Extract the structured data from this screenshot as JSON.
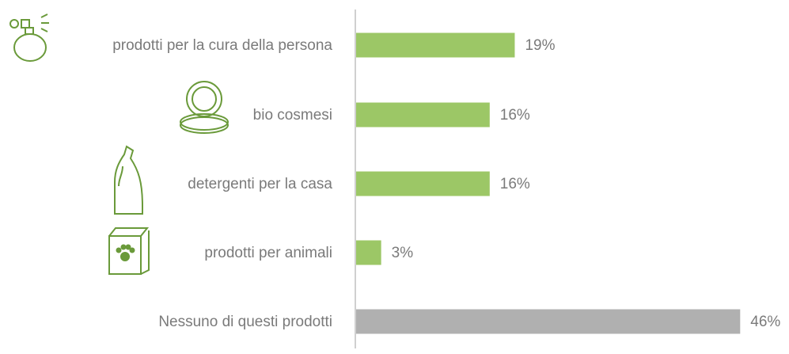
{
  "chart_data": {
    "type": "bar",
    "orientation": "horizontal",
    "categories": [
      "prodotti per la cura della persona",
      "bio cosmesi",
      "detergenti per la casa",
      "prodotti per animali",
      "Nessuno di questi prodotti"
    ],
    "values": [
      19,
      16,
      16,
      3,
      46
    ],
    "value_labels": [
      "19%",
      "16%",
      "16%",
      "3%",
      "46%"
    ],
    "colors": [
      "#9cc766",
      "#9cc766",
      "#9cc766",
      "#9cc766",
      "#b0b0b0"
    ]
  }
}
